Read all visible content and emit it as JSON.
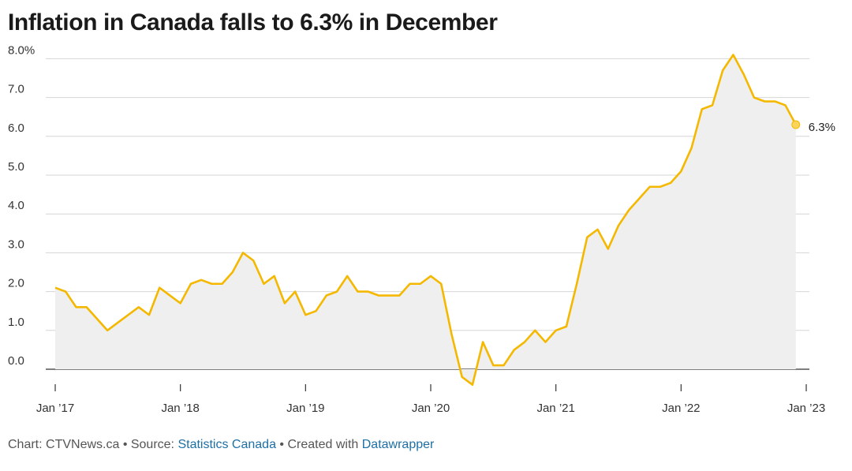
{
  "chart_data": {
    "type": "area",
    "title": "Inflation in Canada falls to 6.3% in December",
    "xlabel": "",
    "ylabel": "",
    "ylim": [
      -0.4,
      8.0
    ],
    "y_ticks": [
      "0.0",
      "1.0",
      "2.0",
      "3.0",
      "4.0",
      "5.0",
      "6.0",
      "7.0",
      "8.0%"
    ],
    "x_tick_labels": [
      "Jan ’17",
      "Jan ’18",
      "Jan ’19",
      "Jan ’20",
      "Jan ’21",
      "Jan ’22",
      "Jan ’23"
    ],
    "x_start": "2017-01",
    "x_end": "2022-12",
    "series": [
      {
        "values": [
          2.1,
          2.0,
          1.6,
          1.6,
          1.3,
          1.0,
          1.2,
          1.4,
          1.6,
          1.4,
          2.1,
          1.9,
          1.7,
          2.2,
          2.3,
          2.2,
          2.2,
          2.5,
          3.0,
          2.8,
          2.2,
          2.4,
          1.7,
          2.0,
          1.4,
          1.5,
          1.9,
          2.0,
          2.4,
          2.0,
          2.0,
          1.9,
          1.9,
          1.9,
          2.2,
          2.2,
          2.4,
          2.2,
          0.9,
          -0.2,
          -0.4,
          0.7,
          0.1,
          0.1,
          0.5,
          0.7,
          1.0,
          0.7,
          1.0,
          1.1,
          2.2,
          3.4,
          3.6,
          3.1,
          3.7,
          4.1,
          4.4,
          4.7,
          4.7,
          4.8,
          5.1,
          5.7,
          6.7,
          6.8,
          7.7,
          8.1,
          7.6,
          7.0,
          6.9,
          6.9,
          6.8,
          6.3
        ],
        "color": "#f5b800"
      }
    ],
    "end_label": "6.3%",
    "area_fill": "#efefef",
    "grid": true
  },
  "footer": {
    "prefix": "Chart: CTVNews.ca • Source: ",
    "source_link": "Statistics Canada",
    "middle": " • Created with ",
    "tool_link": "Datawrapper"
  }
}
